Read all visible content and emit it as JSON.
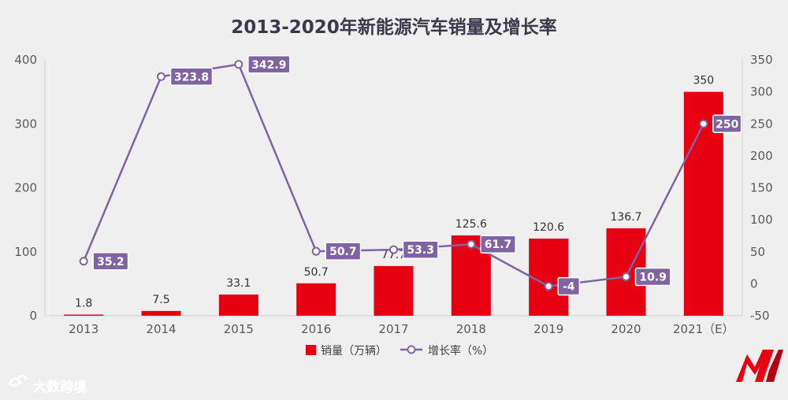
{
  "chart_data": {
    "type": "bar+line",
    "title": "2013-2020年新能源汽车销量及增长率",
    "categories": [
      "2013",
      "2014",
      "2015",
      "2016",
      "2017",
      "2018",
      "2019",
      "2020",
      "2021（E）"
    ],
    "series": [
      {
        "name": "销量（万辆）",
        "type": "bar",
        "axis": "left",
        "values": [
          1.8,
          7.5,
          33.1,
          50.7,
          77.7,
          125.6,
          120.6,
          136.7,
          350
        ],
        "labels": [
          "1.8",
          "7.5",
          "33.1",
          "50.7",
          "77.7",
          "125.6",
          "120.6",
          "136.7",
          "350"
        ],
        "color": "#e60012"
      },
      {
        "name": "增长率（%）",
        "type": "line",
        "axis": "right",
        "values": [
          35.2,
          323.8,
          342.9,
          50.7,
          53.3,
          61.7,
          -4,
          10.9,
          250
        ],
        "labels": [
          "35.2",
          "323.8",
          "342.9",
          "50.7",
          "53.3",
          "61.7",
          "-4",
          "10.9",
          "250"
        ],
        "color": "#8064a2"
      }
    ],
    "y_left": {
      "min": 0,
      "max": 400,
      "ticks": [
        "0",
        "100",
        "200",
        "300",
        "400"
      ]
    },
    "y_right": {
      "min": -50,
      "max": 350,
      "ticks": [
        "-50",
        "0",
        "50",
        "100",
        "150",
        "200",
        "250",
        "300",
        "350"
      ]
    },
    "grid": false,
    "legend_position": "bottom"
  },
  "watermark": {
    "text": "大数跨境"
  },
  "colors": {
    "background": "#efefef",
    "bar": "#e60012",
    "line": "#8064a2",
    "logo": "#e60012"
  }
}
